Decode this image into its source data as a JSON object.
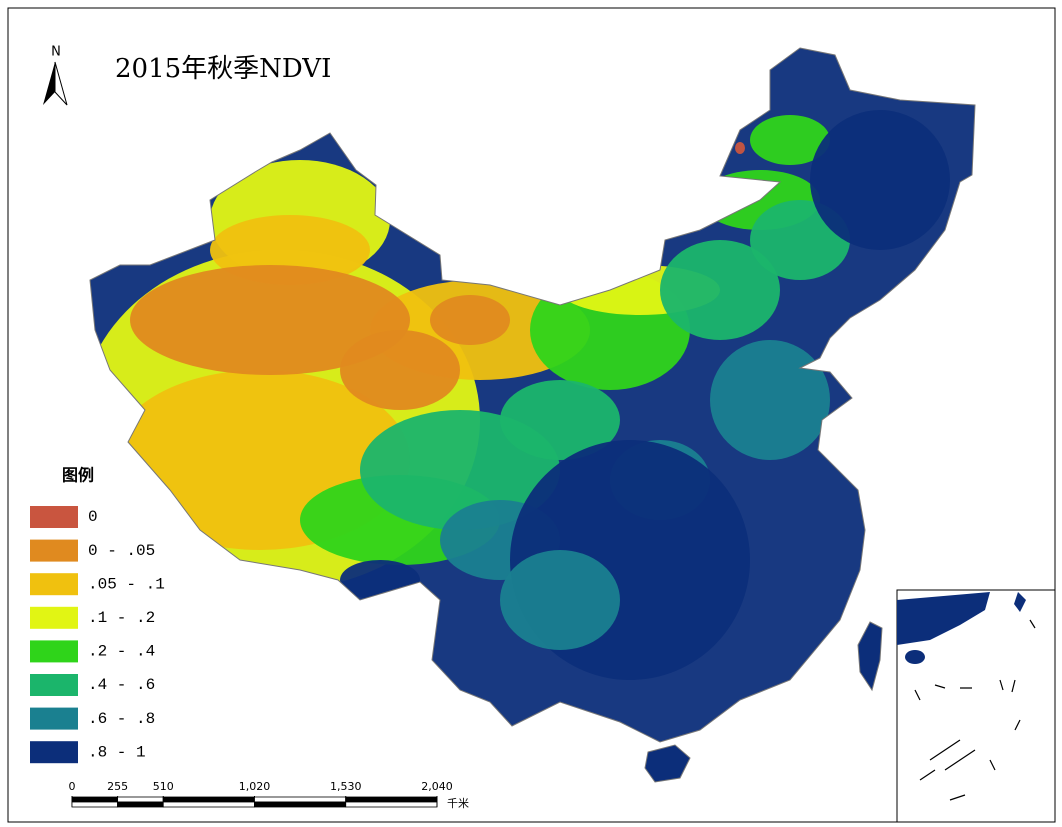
{
  "title": "2015年秋季NDVI",
  "north_label": "N",
  "legend": {
    "title": "图例",
    "items": [
      {
        "label": "0",
        "color": "#c9553f"
      },
      {
        "label": "0 - .05",
        "color": "#e08a1f"
      },
      {
        "label": ".05 - .1",
        "color": "#f0c10f"
      },
      {
        "label": ".1 - .2",
        "color": "#e1f514"
      },
      {
        "label": ".2 - .4",
        "color": "#2fd41a"
      },
      {
        "label": ".4 - .6",
        "color": "#1bb56b"
      },
      {
        "label": ".6 - .8",
        "color": "#1a8090"
      },
      {
        "label": ".8 - 1",
        "color": "#0c2e7a"
      }
    ]
  },
  "scale_bar": {
    "ticks": [
      0,
      255,
      510,
      {
        "value": 1020,
        "label": "1,020"
      },
      {
        "value": 1530,
        "label": "1,530"
      },
      {
        "value": 2040,
        "label": "2,040"
      }
    ],
    "unit": "千米"
  }
}
